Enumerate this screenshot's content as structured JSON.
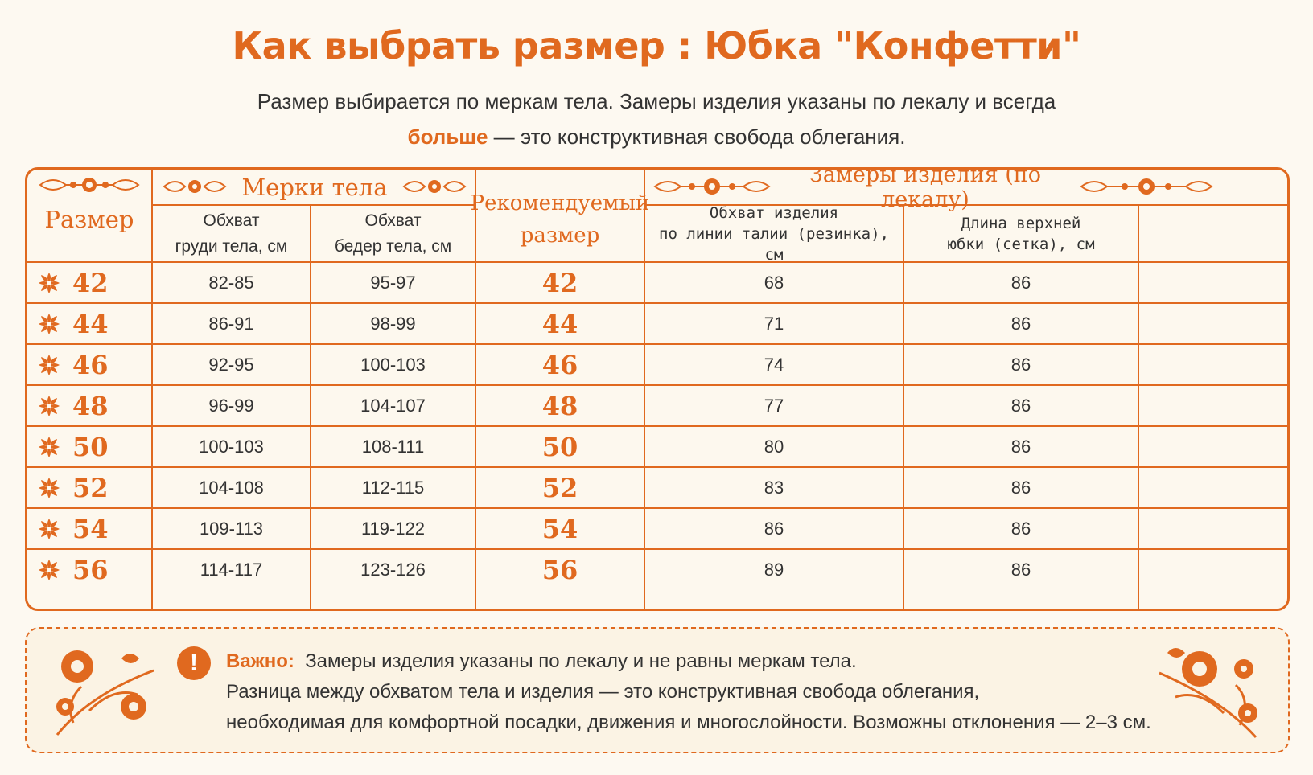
{
  "header": {
    "title": "Как выбрать размер :  Юбка \"Конфетти\"",
    "subtitle_line1": "Размер выбирается по меркам тела. Замеры изделия указаны по лекалу и всегда",
    "subtitle_highlight": "больше",
    "subtitle_line2_rest": " — это конструктивная свобода облегания."
  },
  "table": {
    "col_size": "Размер",
    "group_body": "Мерки тела",
    "col_chest_line1": "Обхват",
    "col_chest_line2": "груди тела, см",
    "col_hips_line1": "Обхват",
    "col_hips_line2": "бедер тела, см",
    "col_recommended_line1": "Рекомендуемый",
    "col_recommended_line2": "размер",
    "group_product": "Замеры изделия (по лекалу)",
    "col_waist_line1": "Обхват изделия",
    "col_waist_line2": "по линии талии (резинка), см",
    "col_length_line1": "Длина верхней",
    "col_length_line2": "юбки (сетка), см",
    "rows": [
      {
        "size": "42",
        "chest": "82-85",
        "hips": "95-97",
        "rec": "42",
        "waist": "68",
        "length": "86"
      },
      {
        "size": "44",
        "chest": "86-91",
        "hips": "98-99",
        "rec": "44",
        "waist": "71",
        "length": "86"
      },
      {
        "size": "46",
        "chest": "92-95",
        "hips": "100-103",
        "rec": "46",
        "waist": "74",
        "length": "86"
      },
      {
        "size": "48",
        "chest": "96-99",
        "hips": "104-107",
        "rec": "48",
        "waist": "77",
        "length": "86"
      },
      {
        "size": "50",
        "chest": "100-103",
        "hips": "108-111",
        "rec": "50",
        "waist": "80",
        "length": "86"
      },
      {
        "size": "52",
        "chest": "104-108",
        "hips": "112-115",
        "rec": "52",
        "waist": "83",
        "length": "86"
      },
      {
        "size": "54",
        "chest": "109-113",
        "hips": "119-122",
        "rec": "54",
        "waist": "86",
        "length": "86"
      },
      {
        "size": "56",
        "chest": "114-117",
        "hips": "123-126",
        "rec": "56",
        "waist": "89",
        "length": "86"
      }
    ]
  },
  "note": {
    "icon": "exclamation-icon",
    "label": "Важно:",
    "line1": "Замеры изделия указаны по лекалу и не равны меркам тела.",
    "line2": "Разница между обхватом тела и изделия — это конструктивная свобода облегания,",
    "line3": "необходимая для комфортной посадки, движения и многослойности. Возможны отклонения — 2–3 см."
  },
  "colors": {
    "accent": "#e0691f",
    "background": "#fdf9f1",
    "text": "#333333"
  }
}
